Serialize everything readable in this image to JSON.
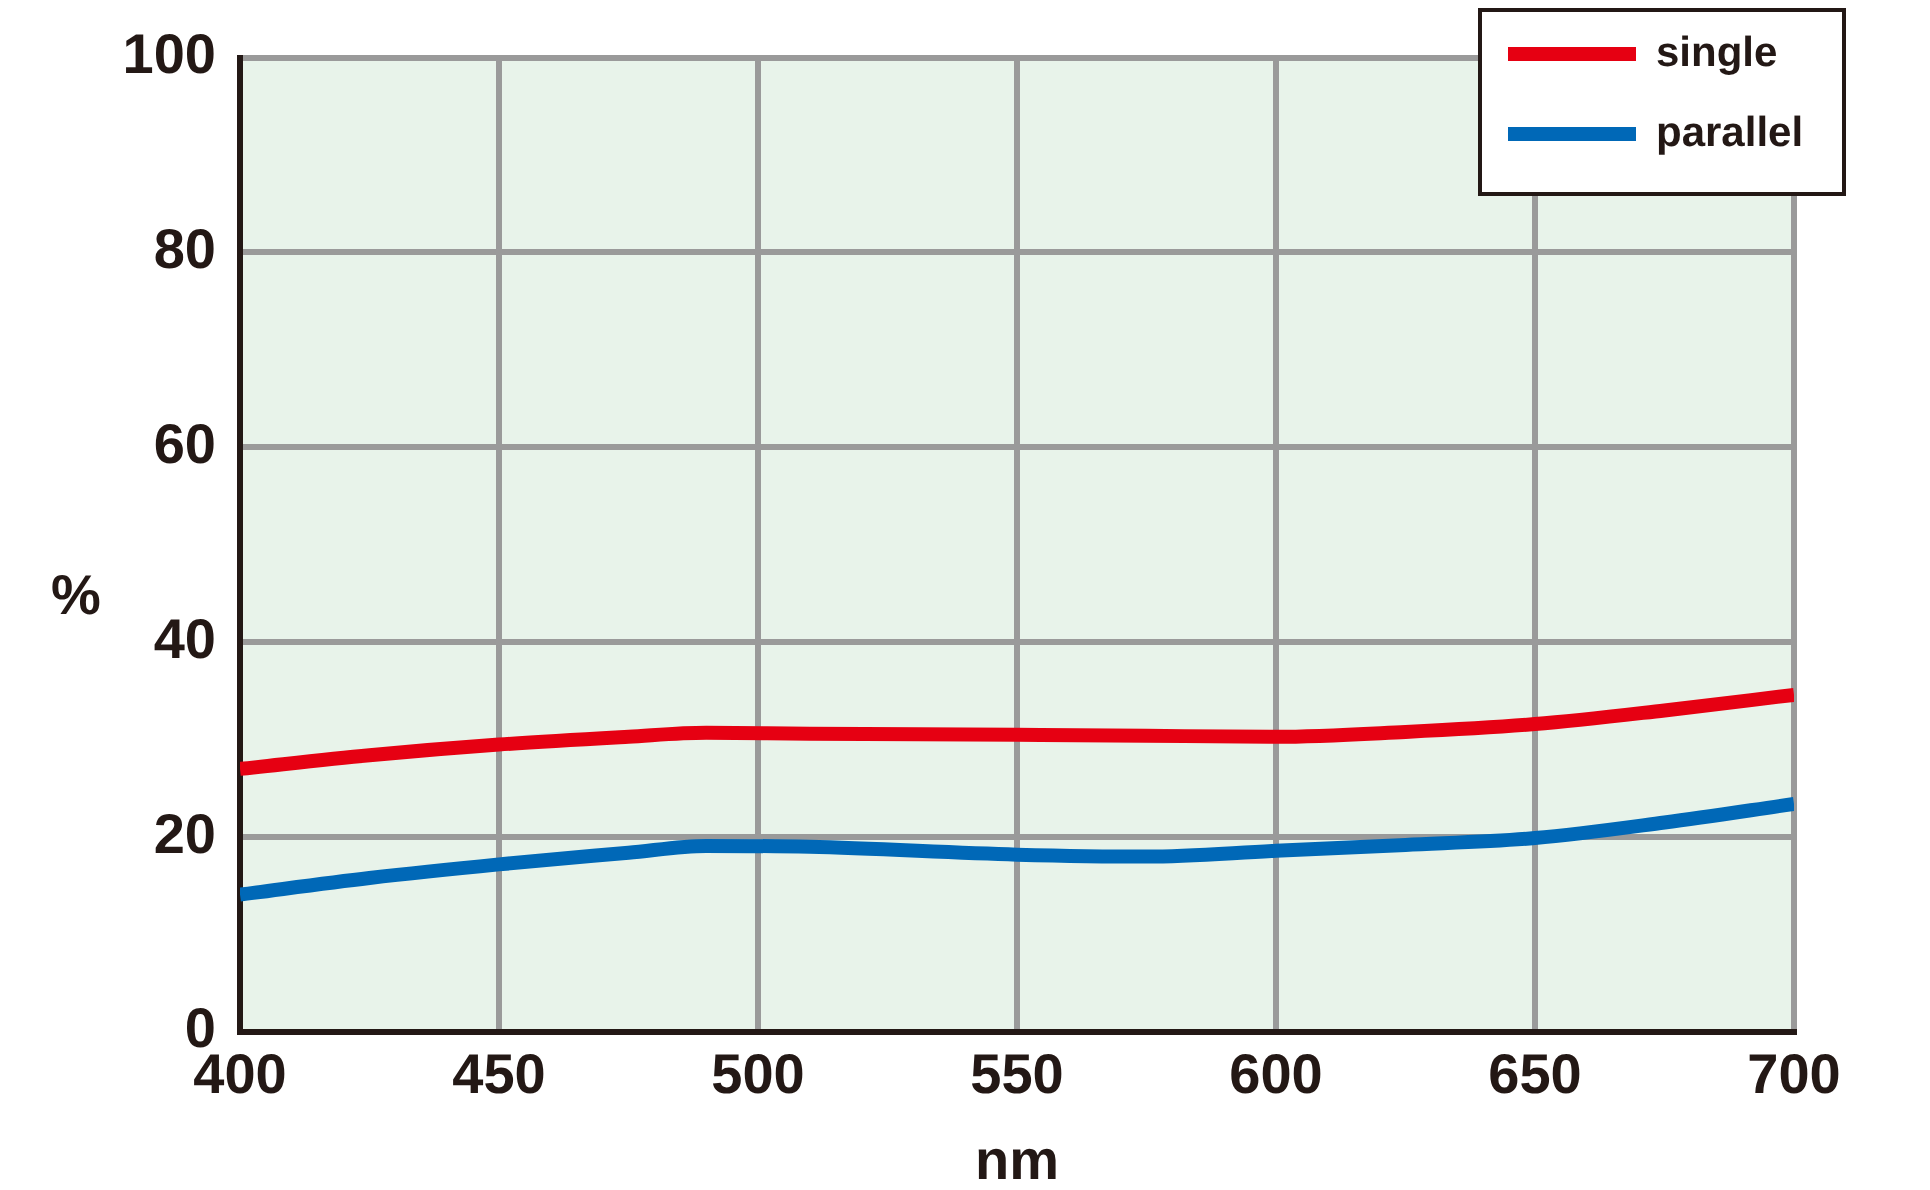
{
  "chart_data": {
    "type": "line",
    "xlabel": "nm",
    "ylabel": "%",
    "x": [
      400,
      425,
      450,
      475,
      490,
      510,
      550,
      575,
      600,
      625,
      650,
      675,
      700
    ],
    "series": [
      {
        "name": "single",
        "color": "#e60012",
        "values": [
          27.0,
          28.4,
          29.5,
          30.3,
          30.7,
          30.6,
          30.5,
          30.4,
          30.3,
          30.8,
          31.6,
          33.0,
          34.6
        ]
      },
      {
        "name": "parallel",
        "color": "#0068b7",
        "values": [
          14.1,
          15.8,
          17.2,
          18.4,
          19.1,
          19.0,
          18.2,
          18.0,
          18.6,
          19.2,
          19.9,
          21.5,
          23.4
        ]
      }
    ],
    "xlim": [
      400,
      700
    ],
    "xticks": [
      400,
      450,
      500,
      550,
      600,
      650,
      700
    ],
    "ylim": [
      0,
      100
    ],
    "yticks": [
      0,
      20,
      40,
      60,
      80,
      100
    ],
    "grid": true,
    "legend": "top right",
    "marker": "none",
    "line_style": "solid"
  }
}
